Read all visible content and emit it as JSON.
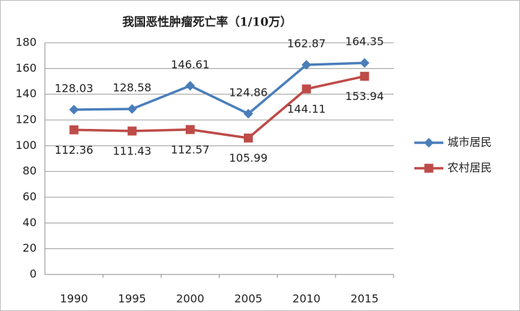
{
  "chart_data": {
    "type": "line",
    "title": "我国恶性肿瘤死亡率（1/10万）",
    "categories": [
      "1990",
      "1995",
      "2000",
      "2005",
      "2010",
      "2015"
    ],
    "series": [
      {
        "name": "城市居民",
        "color": "#4a7ebb",
        "marker": "diamond",
        "values": [
          128.03,
          128.58,
          146.61,
          124.86,
          162.87,
          164.35
        ]
      },
      {
        "name": "农村居民",
        "color": "#be4b48",
        "marker": "square",
        "values": [
          112.36,
          111.43,
          112.57,
          105.99,
          144.11,
          153.94
        ]
      }
    ],
    "ylim": [
      0,
      180
    ],
    "yticks": [
      0,
      20,
      40,
      60,
      80,
      100,
      120,
      140,
      160,
      180
    ],
    "grid": true,
    "legend": "right",
    "data_labels": true
  }
}
